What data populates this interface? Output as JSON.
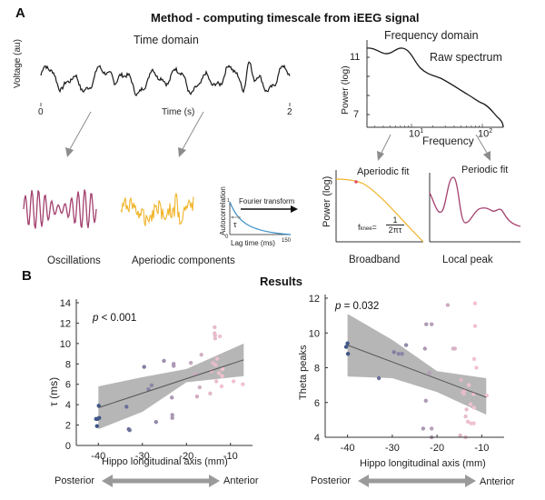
{
  "panelA": {
    "letter": "A",
    "title": "Method - computing timescale from iEEG signal",
    "time_domain": {
      "title": "Time domain",
      "ylabel": "Voltage (au)",
      "xlabel": "Time (s)",
      "x_start": "0",
      "x_end": "2"
    },
    "frequency_domain": {
      "title": "Frequency domain",
      "curve_label": "Raw spectrum",
      "ylabel": "Power (log)",
      "xlabel": "Frequency",
      "yticks": [
        "11",
        "7"
      ],
      "xticks": [
        {
          "base": "10",
          "exp": "1"
        },
        {
          "base": "10",
          "exp": "2"
        }
      ]
    },
    "oscillations_label": "Oscillations",
    "aperiodic_label": "Aperiodic components",
    "autocorrelation": {
      "ylabel": "Autocorrelation",
      "xlabel": "Lag time (ms)",
      "y_top": "1",
      "x_start": "0",
      "x_end": "150",
      "tau_symbol": "τ"
    },
    "fourier_label": "Fourier transform",
    "aperiodic_fit": {
      "title": "Aperiodic fit",
      "ylabel": "Power (log)",
      "formula_lhs": "f",
      "formula_sub": "knee",
      "formula_eq": "=",
      "formula_num": "1",
      "formula_den": "2πτ",
      "caption": "Broadband"
    },
    "periodic_fit": {
      "title": "Periodic fit",
      "caption": "Local peak"
    },
    "colors": {
      "oscillation": "#a3416f",
      "aperiodic": "#f0b429",
      "autocorr": "#3a8fc7",
      "arrow": "#8c8c8c",
      "trace": "#1a1a1a"
    }
  },
  "panelB": {
    "letter": "B",
    "title": "Results",
    "xlabel_axis": "Hippo longitudinal axis (mm)",
    "posterior_label": "Posterior",
    "anterior_label": "Anterior",
    "colors": {
      "posterior_point": "#3f5687",
      "anterior_point": "#f2c2d0",
      "ci_band": "#a9a9a9",
      "fit_line": "#555555"
    }
  },
  "chart_data": [
    {
      "type": "scatter",
      "title": "",
      "annotation": "p < 0.001",
      "annotation_italic": "p",
      "annotation_rest": " < 0.001",
      "xlabel": "Hippo longitudinal axis (mm)",
      "ylabel": "τ (ms)",
      "xlim": [
        -45,
        -5
      ],
      "ylim": [
        0,
        14
      ],
      "xticks": [
        -40,
        -30,
        -20,
        -10
      ],
      "yticks": [
        0,
        2,
        4,
        6,
        8,
        10,
        12,
        14
      ],
      "grid": false,
      "points": [
        {
          "x": -40.5,
          "y": 2.6
        },
        {
          "x": -40.2,
          "y": 2.6
        },
        {
          "x": -40.3,
          "y": 1.9
        },
        {
          "x": -39.9,
          "y": 3.9
        },
        {
          "x": -39.8,
          "y": 2.7
        },
        {
          "x": -33.6,
          "y": 3.8
        },
        {
          "x": -33.1,
          "y": 1.6
        },
        {
          "x": -32.9,
          "y": 1.5
        },
        {
          "x": -29.6,
          "y": 7.7
        },
        {
          "x": -28.6,
          "y": 5.5
        },
        {
          "x": -27.9,
          "y": 5.9
        },
        {
          "x": -26.9,
          "y": 2.3
        },
        {
          "x": -25.1,
          "y": 8.3
        },
        {
          "x": -23.3,
          "y": 4.7
        },
        {
          "x": -23.2,
          "y": 3.0
        },
        {
          "x": -23.2,
          "y": 2.7
        },
        {
          "x": -22.9,
          "y": 7.8
        },
        {
          "x": -22.9,
          "y": 8.0
        },
        {
          "x": -19.0,
          "y": 8.1
        },
        {
          "x": -18.0,
          "y": 7.0
        },
        {
          "x": -17.6,
          "y": 4.8
        },
        {
          "x": -17.0,
          "y": 5.7
        },
        {
          "x": -16.6,
          "y": 8.9
        },
        {
          "x": -14.6,
          "y": 5.1
        },
        {
          "x": -14.3,
          "y": 7.3
        },
        {
          "x": -14.0,
          "y": 8.1
        },
        {
          "x": -13.6,
          "y": 11.6
        },
        {
          "x": -13.6,
          "y": 11.0
        },
        {
          "x": -13.5,
          "y": 10.5
        },
        {
          "x": -13.5,
          "y": 10.8
        },
        {
          "x": -13.4,
          "y": 7.9
        },
        {
          "x": -13.2,
          "y": 6.3
        },
        {
          "x": -13.0,
          "y": 8.5
        },
        {
          "x": -12.6,
          "y": 7.1
        },
        {
          "x": -12.4,
          "y": 10.7
        },
        {
          "x": -12.0,
          "y": 5.8
        },
        {
          "x": -11.9,
          "y": 6.8
        },
        {
          "x": -11.8,
          "y": 7.5
        },
        {
          "x": -9.3,
          "y": 6.3
        },
        {
          "x": -7.2,
          "y": 6.0
        }
      ],
      "fit_line": {
        "x": [
          -40,
          -7
        ],
        "y": [
          3.7,
          8.4
        ]
      },
      "ci_band": {
        "x": [
          -40,
          -30,
          -20,
          -7
        ],
        "lower": [
          1.6,
          3.3,
          6.2,
          6.8
        ],
        "upper": [
          5.8,
          6.7,
          7.5,
          10.0
        ]
      }
    },
    {
      "type": "scatter",
      "title": "",
      "annotation": "p = 0.032",
      "annotation_italic": "p",
      "annotation_rest": " = 0.032",
      "xlabel": "Hippo longitudinal axis (mm)",
      "ylabel": "Theta peaks",
      "xlim": [
        -45,
        -5
      ],
      "ylim": [
        4,
        12
      ],
      "xticks": [
        -40,
        -30,
        -20,
        -10
      ],
      "yticks": [
        4,
        6,
        8,
        10,
        12
      ],
      "grid": false,
      "points": [
        {
          "x": -40.3,
          "y": 9.2
        },
        {
          "x": -40.0,
          "y": 9.4
        },
        {
          "x": -39.9,
          "y": 8.8
        },
        {
          "x": -33.0,
          "y": 7.4
        },
        {
          "x": -29.6,
          "y": 8.9
        },
        {
          "x": -28.6,
          "y": 8.8
        },
        {
          "x": -27.8,
          "y": 8.8
        },
        {
          "x": -26.9,
          "y": 9.3
        },
        {
          "x": -23.1,
          "y": 4.5
        },
        {
          "x": -22.7,
          "y": 9.1
        },
        {
          "x": -22.5,
          "y": 6.1
        },
        {
          "x": -22.4,
          "y": 10.5
        },
        {
          "x": -21.7,
          "y": 7.7
        },
        {
          "x": -21.2,
          "y": 4.5
        },
        {
          "x": -21.2,
          "y": 10.5
        },
        {
          "x": -21.2,
          "y": 4.0
        },
        {
          "x": -17.6,
          "y": 11.6
        },
        {
          "x": -16.4,
          "y": 9.1
        },
        {
          "x": -16.0,
          "y": 9.1
        },
        {
          "x": -14.8,
          "y": 4.1
        },
        {
          "x": -14.6,
          "y": 7.3
        },
        {
          "x": -14.3,
          "y": 6.6
        },
        {
          "x": -14.0,
          "y": 6.5
        },
        {
          "x": -13.8,
          "y": 6.7
        },
        {
          "x": -13.6,
          "y": 5.2
        },
        {
          "x": -13.6,
          "y": 4.0
        },
        {
          "x": -13.4,
          "y": 5.6
        },
        {
          "x": -13.1,
          "y": 4.9
        },
        {
          "x": -12.9,
          "y": 7.0
        },
        {
          "x": -12.5,
          "y": 5.9
        },
        {
          "x": -12.4,
          "y": 4.8
        },
        {
          "x": -11.8,
          "y": 4.8
        },
        {
          "x": -11.8,
          "y": 6.5
        },
        {
          "x": -11.7,
          "y": 5.7
        },
        {
          "x": -11.7,
          "y": 8.5
        },
        {
          "x": -11.5,
          "y": 11.7
        },
        {
          "x": -11.5,
          "y": 10.4
        },
        {
          "x": -11.2,
          "y": 8.0
        },
        {
          "x": -8.9,
          "y": 6.4
        }
      ],
      "fit_line": {
        "x": [
          -40,
          -9
        ],
        "y": [
          9.3,
          6.3
        ]
      },
      "ci_band": {
        "x": [
          -40,
          -30,
          -20,
          -9
        ],
        "lower": [
          7.5,
          7.4,
          6.6,
          5.3
        ],
        "upper": [
          11.1,
          9.6,
          7.8,
          7.4
        ]
      }
    }
  ]
}
